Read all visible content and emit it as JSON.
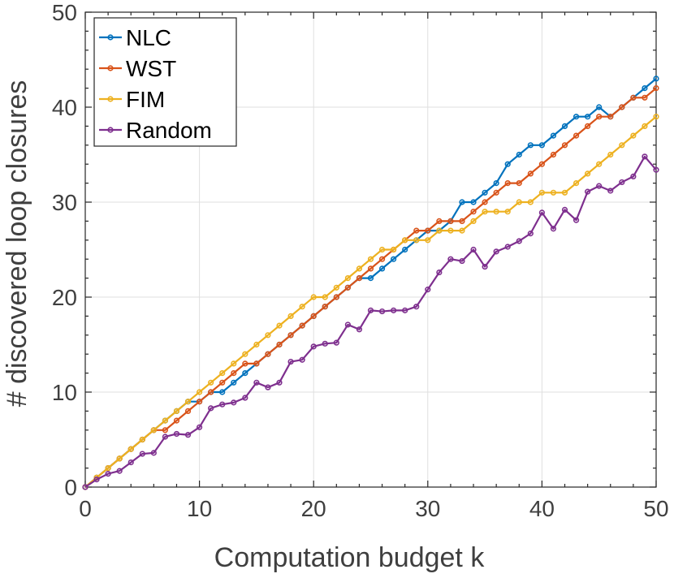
{
  "chart_data": {
    "type": "line",
    "title": "",
    "xlabel": "Computation budget k",
    "ylabel": "# discovered loop closures",
    "xlim": [
      0,
      50
    ],
    "ylim": [
      0,
      50
    ],
    "xticks": [
      0,
      10,
      20,
      30,
      40,
      50
    ],
    "yticks": [
      0,
      10,
      20,
      30,
      40,
      50
    ],
    "grid": true,
    "legend_position": "top-left",
    "x": [
      0,
      1,
      2,
      3,
      4,
      5,
      6,
      7,
      8,
      9,
      10,
      11,
      12,
      13,
      14,
      15,
      16,
      17,
      18,
      19,
      20,
      21,
      22,
      23,
      24,
      25,
      26,
      27,
      28,
      29,
      30,
      31,
      32,
      33,
      34,
      35,
      36,
      37,
      38,
      39,
      40,
      41,
      42,
      43,
      44,
      45,
      46,
      47,
      48,
      49,
      50
    ],
    "series": [
      {
        "name": "NLC",
        "color": "#0072BD",
        "values": [
          0,
          1,
          2,
          3,
          4,
          5,
          6,
          7,
          8,
          9,
          9,
          10,
          10,
          11,
          12,
          13,
          14,
          15,
          16,
          17,
          18,
          19,
          20,
          21,
          22,
          22,
          23,
          24,
          25,
          26,
          27,
          27,
          28,
          30,
          30,
          31,
          32,
          34,
          35,
          36,
          36,
          37,
          38,
          39,
          39,
          40,
          39,
          40,
          41,
          42,
          43
        ]
      },
      {
        "name": "WST",
        "color": "#D95319",
        "values": [
          0,
          1,
          2,
          3,
          4,
          5,
          6,
          6,
          7,
          8,
          9,
          10,
          11,
          12,
          13,
          13,
          14,
          15,
          16,
          17,
          18,
          19,
          20,
          21,
          22,
          23,
          24,
          25,
          26,
          27,
          27,
          28,
          28,
          28,
          29,
          30,
          31,
          32,
          32,
          33,
          34,
          35,
          36,
          37,
          38,
          39,
          39,
          40,
          41,
          41,
          42
        ]
      },
      {
        "name": "FIM",
        "color": "#EDB120",
        "values": [
          0,
          1,
          2,
          3,
          4,
          5,
          6,
          7,
          8,
          9,
          10,
          11,
          12,
          13,
          14,
          15,
          16,
          17,
          18,
          19,
          20,
          20,
          21,
          22,
          23,
          24,
          25,
          25,
          26,
          26,
          26,
          27,
          27,
          27,
          28,
          29,
          29,
          29,
          30,
          30,
          31,
          31,
          31,
          32,
          33,
          34,
          35,
          36,
          37,
          38,
          39
        ]
      },
      {
        "name": "Random",
        "color": "#7E2F8E",
        "values": [
          0,
          0.8,
          1.4,
          1.7,
          2.6,
          3.5,
          3.6,
          5.3,
          5.6,
          5.5,
          6.3,
          8.3,
          8.7,
          8.9,
          9.4,
          11,
          10.5,
          11,
          13.2,
          13.4,
          14.8,
          15.1,
          15.2,
          17.1,
          16.6,
          18.6,
          18.5,
          18.6,
          18.6,
          19,
          20.8,
          22.6,
          24,
          23.8,
          25,
          23.2,
          24.8,
          25.3,
          25.9,
          26.7,
          28.9,
          27.2,
          29.2,
          28.1,
          31.1,
          31.7,
          31.2,
          32.1,
          32.7,
          34.8,
          33.4
        ]
      }
    ]
  }
}
